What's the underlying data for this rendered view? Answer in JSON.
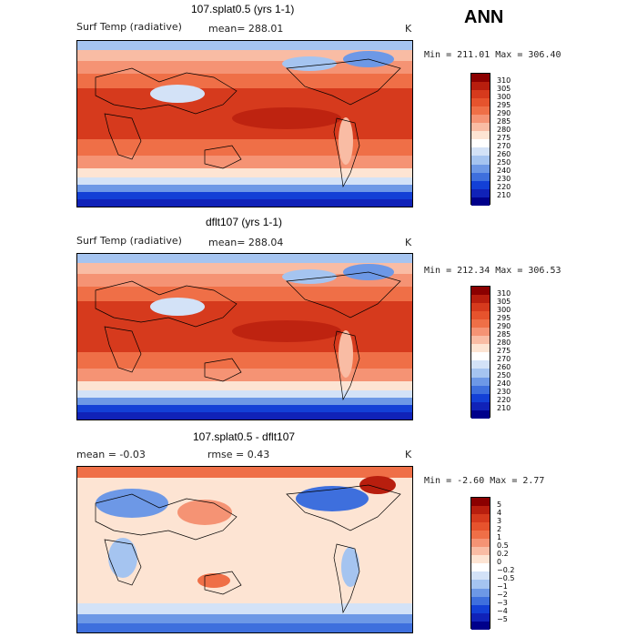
{
  "season": "ANN",
  "panels": [
    {
      "title": "107.splat0.5 (yrs 1-1)",
      "left_label": "Surf Temp (radiative)",
      "center_label": "mean= 288.01",
      "unit": "K",
      "minmax": "Min = 211.01 Max = 306.40",
      "colorbar": [
        "310",
        "305",
        "300",
        "295",
        "290",
        "285",
        "280",
        "275",
        "270",
        "260",
        "250",
        "240",
        "230",
        "220",
        "210"
      ],
      "colors": [
        "#8b0000",
        "#b81e0e",
        "#d63a1d",
        "#e6532d",
        "#ef6f47",
        "#f59374",
        "#f9bca4",
        "#fde4d3",
        "#ffffff",
        "#d3e2f7",
        "#a5c4f0",
        "#6d98e6",
        "#3e6fdd",
        "#1340d6",
        "#1022b8",
        "#00008b"
      ]
    },
    {
      "title": "dflt107 (yrs 1-1)",
      "left_label": "Surf Temp (radiative)",
      "center_label": "mean= 288.04",
      "unit": "K",
      "minmax": "Min = 212.34 Max = 306.53",
      "colorbar": [
        "310",
        "305",
        "300",
        "295",
        "290",
        "285",
        "280",
        "275",
        "270",
        "260",
        "250",
        "240",
        "230",
        "220",
        "210"
      ],
      "colors": [
        "#8b0000",
        "#b81e0e",
        "#d63a1d",
        "#e6532d",
        "#ef6f47",
        "#f59374",
        "#f9bca4",
        "#fde4d3",
        "#ffffff",
        "#d3e2f7",
        "#a5c4f0",
        "#6d98e6",
        "#3e6fdd",
        "#1340d6",
        "#1022b8",
        "#00008b"
      ]
    },
    {
      "title": "107.splat0.5 - dflt107",
      "left_label": "mean =   -0.03",
      "center_label": "rmse =    0.43",
      "unit": "K",
      "minmax": "Min =  -2.60 Max =   2.77",
      "colorbar": [
        "5",
        "4",
        "3",
        "2",
        "1",
        "0.5",
        "0.2",
        "0",
        "−0.2",
        "−0.5",
        "−1",
        "−2",
        "−3",
        "−4",
        "−5"
      ],
      "colors": [
        "#8b0000",
        "#b81e0e",
        "#d63a1d",
        "#e6532d",
        "#ef6f47",
        "#f59374",
        "#f9bca4",
        "#fde4d3",
        "#ffffff",
        "#d3e2f7",
        "#a5c4f0",
        "#6d98e6",
        "#3e6fdd",
        "#1340d6",
        "#1022b8",
        "#00008b"
      ]
    }
  ]
}
